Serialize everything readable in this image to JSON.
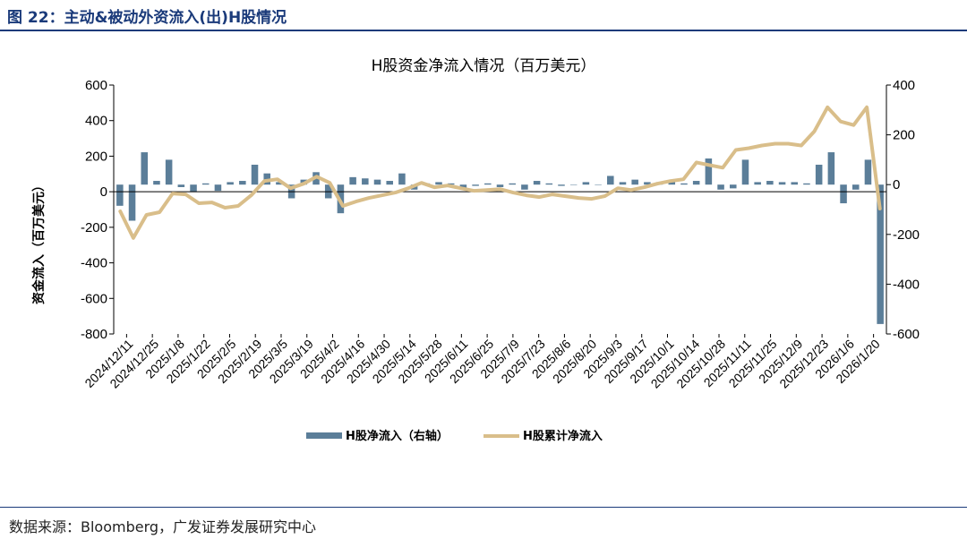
{
  "figure": {
    "title": "图 22：主动&被动外资流入(出)H股情况",
    "source": "数据来源：Bloomberg，广发证券发展研究中心"
  },
  "colors": {
    "bar": "#5b7e99",
    "line": "#d9be8a",
    "header": "#1a3a7a"
  },
  "chart_data": {
    "type": "bar+line",
    "title": "H股资金净流入情况（百万美元）",
    "ylabel": "资金流入（百万美元）",
    "ylim_left": [
      -800,
      600
    ],
    "yticks_left": [
      600,
      400,
      200,
      0,
      -200,
      -400,
      -600,
      -800
    ],
    "ylim_right": [
      -600,
      400
    ],
    "yticks_right": [
      400,
      200,
      0,
      -200,
      -400,
      -600
    ],
    "x_tick_labels": [
      "2024/12/11",
      "2024/12/25",
      "2025/1/8",
      "2025/1/22",
      "2025/2/5",
      "2025/2/19",
      "2025/3/5",
      "2025/3/19",
      "2025/4/2",
      "2025/4/16",
      "2025/4/30",
      "2025/5/14",
      "2025/5/28",
      "2025/6/11",
      "2025/6/25",
      "2025/7/9",
      "2025/7/23",
      "2025/8/6",
      "2025/8/20",
      "2025/9/3",
      "2025/9/17",
      "2025/10/1",
      "2025/10/14",
      "2025/10/28",
      "2025/11/11",
      "2025/11/25",
      "2025/12/9",
      "2025/12/23",
      "2026/1/6",
      "2026/1/20"
    ],
    "legend_position": "bottom",
    "series": [
      {
        "name": "H股净流入（右轴）",
        "type": "bar",
        "axis": "right",
        "values": [
          -85,
          -145,
          130,
          15,
          100,
          -10,
          -30,
          5,
          -25,
          10,
          15,
          80,
          45,
          10,
          -55,
          20,
          50,
          -55,
          -115,
          30,
          25,
          20,
          15,
          45,
          -20,
          5,
          10,
          5,
          -20,
          -5,
          5,
          -10,
          5,
          -20,
          15,
          5,
          -5,
          0,
          10,
          0,
          35,
          10,
          20,
          10,
          10,
          15,
          5,
          15,
          105,
          -20,
          -15,
          100,
          10,
          15,
          10,
          10,
          5,
          80,
          130,
          -75,
          -20,
          100,
          -560
        ]
      },
      {
        "name": "H股累计净流入",
        "type": "line",
        "axis": "left",
        "values": [
          -110,
          -260,
          -130,
          -115,
          -10,
          -15,
          -65,
          -60,
          -90,
          -80,
          -20,
          60,
          70,
          20,
          45,
          85,
          50,
          -80,
          -55,
          -35,
          -20,
          -5,
          20,
          50,
          25,
          35,
          20,
          5,
          10,
          15,
          -5,
          -20,
          -30,
          -15,
          -25,
          -35,
          -40,
          -25,
          20,
          10,
          25,
          45,
          60,
          70,
          165,
          150,
          135,
          235,
          245,
          260,
          270,
          270,
          260,
          340,
          475,
          395,
          375,
          475,
          -95
        ]
      }
    ]
  }
}
